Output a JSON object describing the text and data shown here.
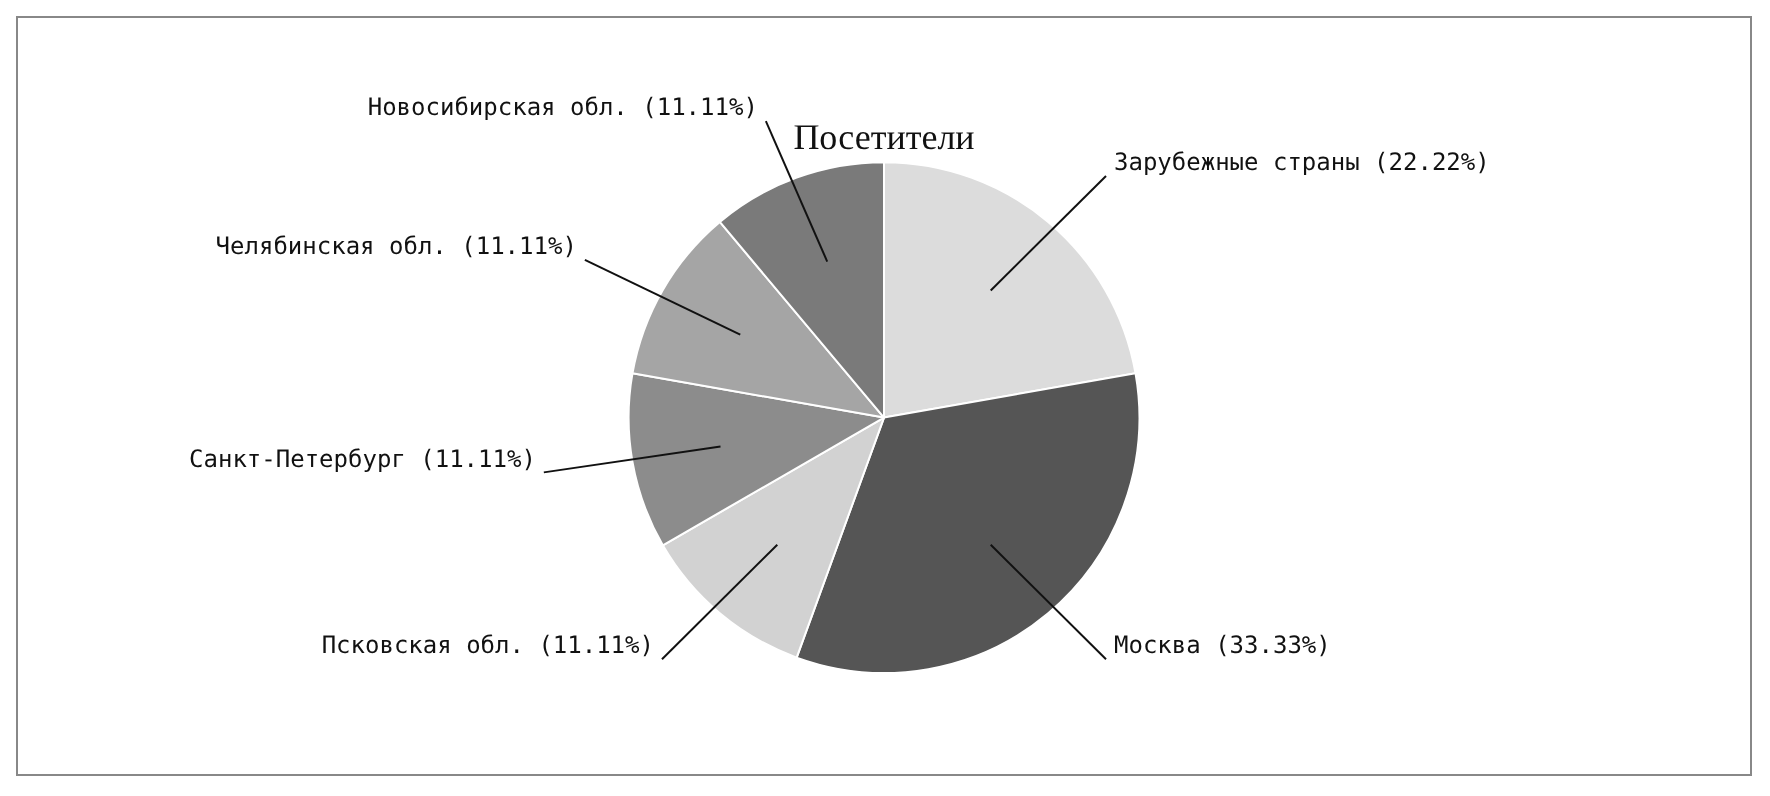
{
  "chart_data": {
    "type": "pie",
    "title": "Посетители",
    "categories": [
      "Зарубежные страны",
      "Москва",
      "Псковская обл.",
      "Санкт-Петербург",
      "Челябинская обл.",
      "Новосибирская обл."
    ],
    "values": [
      22.22,
      33.33,
      11.11,
      11.11,
      11.11,
      11.11
    ],
    "value_labels": [
      "(22.22%)",
      "(33.33%)",
      "(11.11%)",
      "(11.11%)",
      "(11.11%)",
      "(11.11%)"
    ],
    "colors": [
      "#dcdcdc",
      "#555555",
      "#d2d2d2",
      "#8c8c8c",
      "#a5a5a5",
      "#7a7a7a"
    ],
    "legend": false
  }
}
